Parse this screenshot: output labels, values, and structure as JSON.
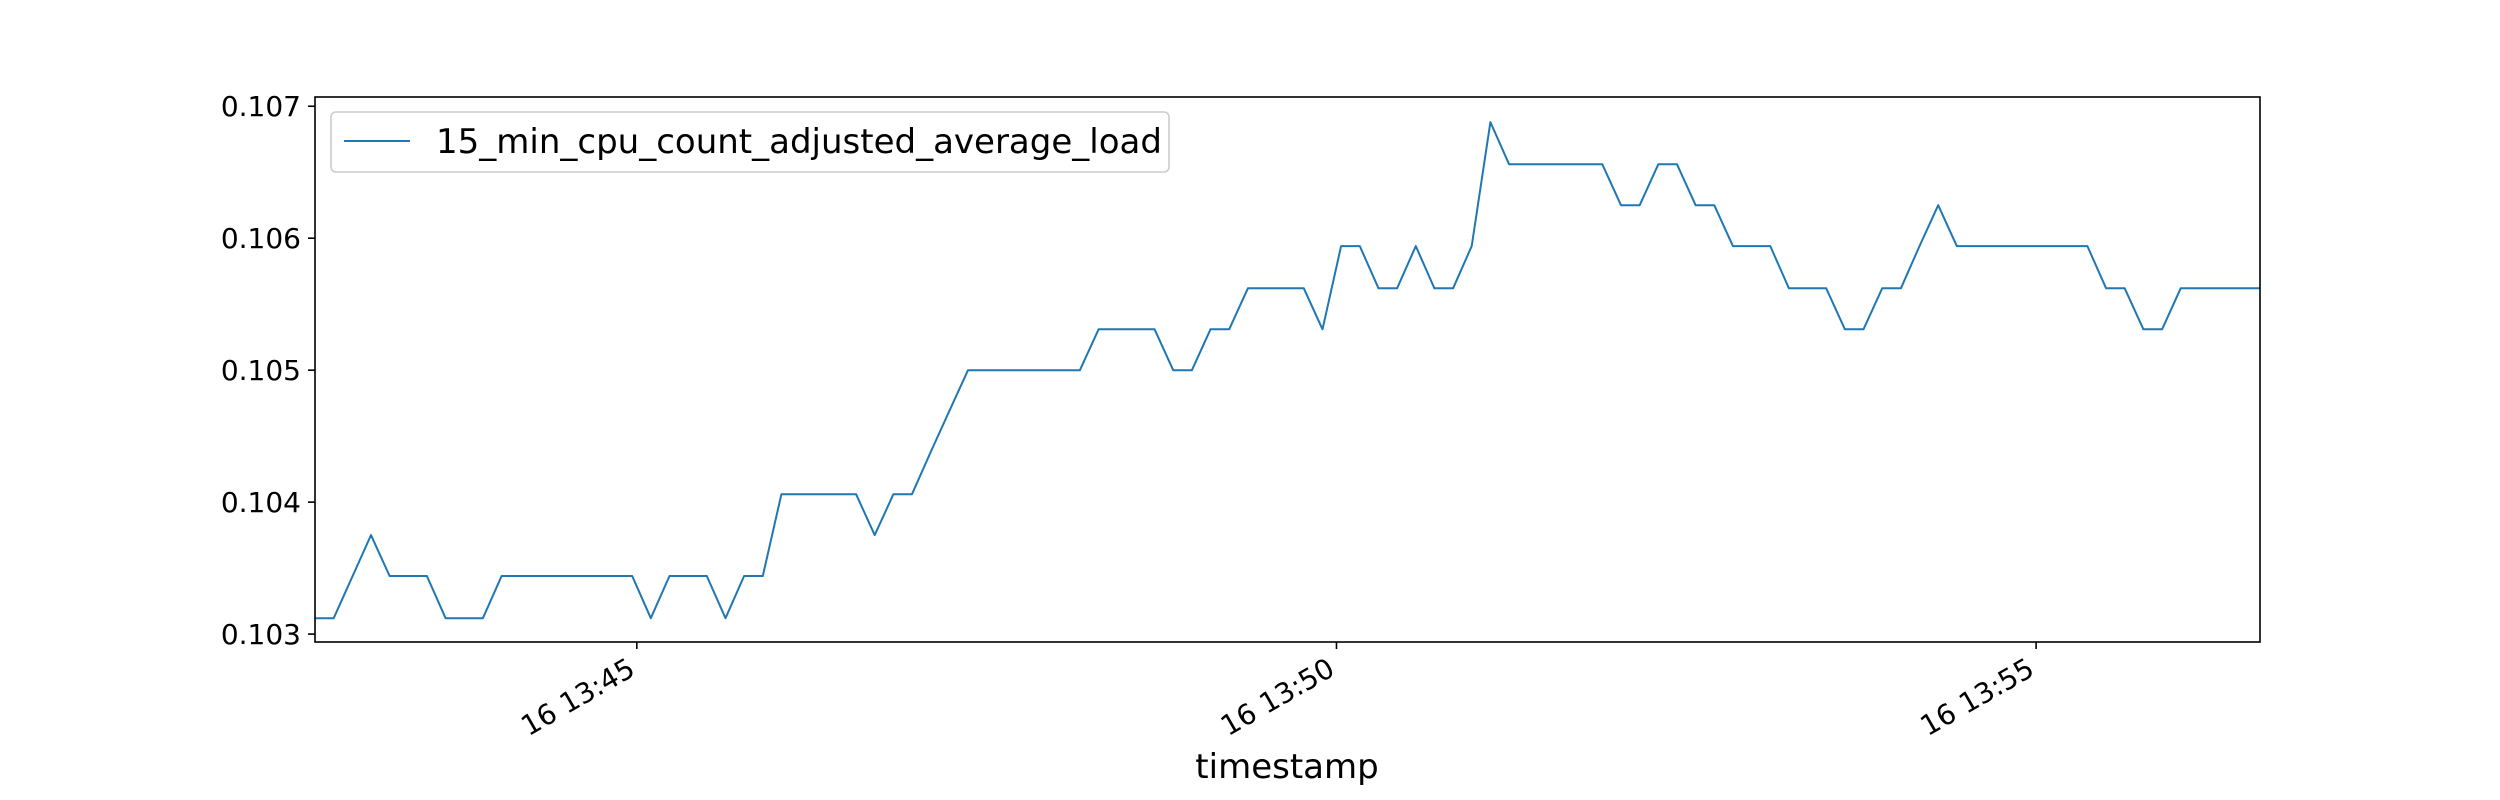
{
  "chart_data": {
    "type": "line",
    "title": "",
    "xlabel": "timestamp",
    "ylabel": "",
    "legend_position": "top-left",
    "grid": false,
    "xlim": [
      "16 13:42:42",
      "16 13:56:36"
    ],
    "ylim": [
      0.10294,
      0.10707
    ],
    "yticks": [
      0.103,
      0.104,
      0.105,
      0.106,
      0.107
    ],
    "ytick_labels": [
      "0.103",
      "0.104",
      "0.105",
      "0.106",
      "0.107"
    ],
    "xticks": [
      "16 13:45:00",
      "16 13:50:00",
      "16 13:55:00"
    ],
    "xtick_labels": [
      "16 13:45",
      "16 13:50",
      "16 13:55"
    ],
    "series": [
      {
        "name": "15_min_cpu_count_adjusted_average_load",
        "color": "#1f77b4",
        "x": [
          "16 13:42:42",
          "16 13:42:50",
          "16 13:43:06",
          "16 13:43:14",
          "16 13:43:30",
          "16 13:43:38",
          "16 13:43:54",
          "16 13:44:02",
          "16 13:44:18",
          "16 13:44:26",
          "16 13:44:34",
          "16 13:44:42",
          "16 13:44:50",
          "16 13:44:58",
          "16 13:45:06",
          "16 13:45:14",
          "16 13:45:22",
          "16 13:45:30",
          "16 13:45:38",
          "16 13:45:46",
          "16 13:45:54",
          "16 13:46:02",
          "16 13:46:10",
          "16 13:46:18",
          "16 13:46:26",
          "16 13:46:34",
          "16 13:46:42",
          "16 13:46:50",
          "16 13:46:58",
          "16 13:47:06",
          "16 13:47:14",
          "16 13:47:22",
          "16 13:47:30",
          "16 13:47:38",
          "16 13:47:46",
          "16 13:47:54",
          "16 13:48:02",
          "16 13:48:10",
          "16 13:48:18",
          "16 13:48:26",
          "16 13:48:34",
          "16 13:48:42",
          "16 13:48:50",
          "16 13:48:58",
          "16 13:49:06",
          "16 13:49:14",
          "16 13:49:22",
          "16 13:49:30",
          "16 13:49:38",
          "16 13:49:46",
          "16 13:49:54",
          "16 13:50:02",
          "16 13:50:10",
          "16 13:50:18",
          "16 13:50:26",
          "16 13:50:34",
          "16 13:50:42",
          "16 13:50:50",
          "16 13:50:58",
          "16 13:51:06",
          "16 13:51:14",
          "16 13:51:22",
          "16 13:51:30",
          "16 13:51:38",
          "16 13:51:46",
          "16 13:51:54",
          "16 13:52:02",
          "16 13:52:10",
          "16 13:52:18",
          "16 13:52:26",
          "16 13:52:34",
          "16 13:52:42",
          "16 13:52:50",
          "16 13:52:58",
          "16 13:53:06",
          "16 13:53:14",
          "16 13:53:22",
          "16 13:53:30",
          "16 13:53:38",
          "16 13:53:46",
          "16 13:53:54",
          "16 13:54:02",
          "16 13:54:10",
          "16 13:54:18",
          "16 13:54:26",
          "16 13:54:34",
          "16 13:54:42",
          "16 13:54:50",
          "16 13:54:58",
          "16 13:55:06",
          "16 13:55:14",
          "16 13:55:22",
          "16 13:55:30",
          "16 13:55:38",
          "16 13:55:46",
          "16 13:55:54",
          "16 13:56:02",
          "16 13:56:10",
          "16 13:56:18",
          "16 13:56:26",
          "16 13:56:36"
        ],
        "values": [
          0.10312,
          0.10312,
          0.10375,
          0.10344,
          0.10344,
          0.10312,
          0.10312,
          0.10344,
          0.10344,
          0.10344,
          0.10344,
          0.10344,
          0.10344,
          0.10344,
          0.10312,
          0.10344,
          0.10344,
          0.10344,
          0.10312,
          0.10344,
          0.10344,
          0.10406,
          0.10406,
          0.10406,
          0.10406,
          0.10406,
          0.10375,
          0.10406,
          0.10406,
          0.10438,
          0.10469,
          0.105,
          0.105,
          0.105,
          0.105,
          0.105,
          0.105,
          0.105,
          0.10531,
          0.10531,
          0.10531,
          0.10531,
          0.105,
          0.105,
          0.10531,
          0.10531,
          0.10562,
          0.10562,
          0.10562,
          0.10562,
          0.10531,
          0.10594,
          0.10594,
          0.10562,
          0.10562,
          0.10594,
          0.10562,
          0.10562,
          0.10594,
          0.10688,
          0.10656,
          0.10656,
          0.10656,
          0.10656,
          0.10656,
          0.10656,
          0.10625,
          0.10625,
          0.10656,
          0.10656,
          0.10625,
          0.10625,
          0.10594,
          0.10594,
          0.10594,
          0.10562,
          0.10562,
          0.10562,
          0.10531,
          0.10531,
          0.10562,
          0.10562,
          0.10594,
          0.10625,
          0.10594,
          0.10594,
          0.10594,
          0.10594,
          0.10594,
          0.10594,
          0.10594,
          0.10594,
          0.10562,
          0.10562,
          0.10531,
          0.10531,
          0.10562,
          0.10562,
          0.10562,
          0.10562,
          0.10562
        ]
      }
    ]
  }
}
